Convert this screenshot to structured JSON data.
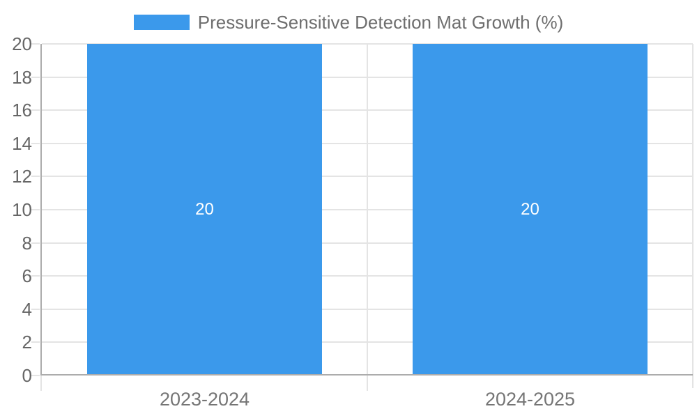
{
  "chart_data": {
    "type": "bar",
    "title": "Pressure-Sensitive Detection Mat Growth (%)",
    "categories": [
      "2023-2024",
      "2024-2025"
    ],
    "values": [
      20,
      20
    ],
    "bar_labels": [
      "20",
      "20"
    ],
    "ylabel": "",
    "xlabel": "",
    "ylim": [
      0,
      20
    ],
    "ytick_step": 2,
    "ytick_labels": [
      "0",
      "2",
      "4",
      "6",
      "8",
      "10",
      "12",
      "14",
      "16",
      "18",
      "20"
    ],
    "grid": true,
    "legend_position": "top-center",
    "legend_entries": [
      "Pressure-Sensitive Detection Mat Growth (%)"
    ],
    "colors": {
      "bar": "#3B99EB",
      "axis": "#ACACAC",
      "grid": "#E4E4E4",
      "tick_label": "#666666",
      "category_label": "#757575",
      "legend_label": "#6E6E6E",
      "bar_label": "#FFFFFF",
      "background": "#FFFFFF"
    }
  }
}
